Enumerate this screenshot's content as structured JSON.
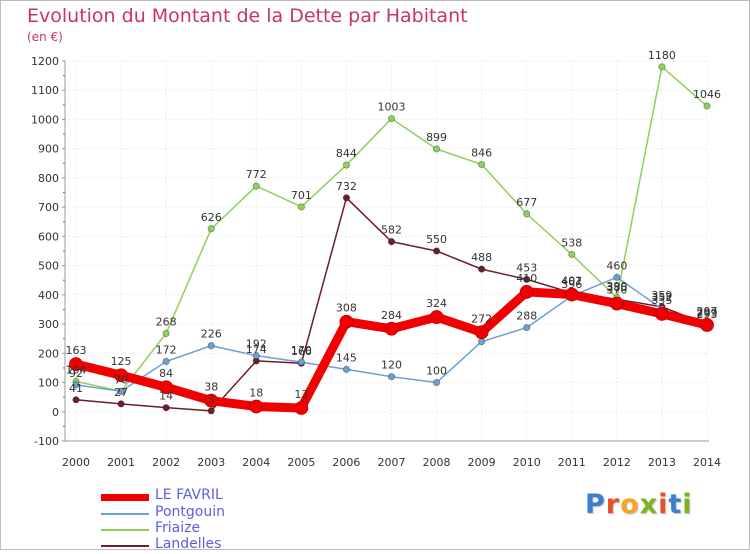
{
  "header": {
    "title": "Evolution du Montant de la Dette par Habitant",
    "unit": "(en €)"
  },
  "logo": {
    "text": "Proxiti",
    "letter_colors": [
      "#3b7fd0",
      "#e8502a",
      "#f5a623",
      "#7ab51d",
      "#e8502a",
      "#3b7fd0",
      "#7ab51d"
    ]
  },
  "chart_data": {
    "type": "line",
    "title": "Evolution du Montant de la Dette par Habitant",
    "ylabel": "(en €)",
    "xlabel": "",
    "x": [
      "2000",
      "2001",
      "2002",
      "2003",
      "2004",
      "2005",
      "2006",
      "2007",
      "2008",
      "2009",
      "2010",
      "2011",
      "2012",
      "2013",
      "2014"
    ],
    "ylim": [
      -100,
      1200
    ],
    "yticks": [
      -100,
      0,
      100,
      200,
      300,
      400,
      500,
      600,
      700,
      800,
      900,
      1000,
      1100,
      1200
    ],
    "grid": true,
    "legend": "bottom-left",
    "series": [
      {
        "name": "Landelles",
        "color": "#6b1f2a",
        "values": [
          41,
          27,
          14,
          3,
          174,
          166,
          732,
          582,
          550,
          488,
          453,
          407,
          385,
          359,
          299
        ],
        "labels": [
          "41",
          "27",
          "14",
          "3",
          "174",
          "166",
          "732",
          "582",
          "550",
          "488",
          "453",
          "407",
          "385",
          "359",
          "299"
        ]
      },
      {
        "name": "Friaize",
        "color": "#8fd05a",
        "values": [
          104,
          70,
          268,
          626,
          772,
          701,
          844,
          1003,
          899,
          846,
          677,
          538,
          390,
          1180,
          1046
        ],
        "labels": [
          "104",
          "70",
          "268",
          "626",
          "772",
          "701",
          "844",
          "1003",
          "899",
          "846",
          "677",
          "538",
          "390",
          "1180",
          "1046"
        ]
      },
      {
        "name": "Pontgouin",
        "color": "#6d9fd3",
        "values": [
          92,
          70,
          172,
          226,
          192,
          170,
          145,
          120,
          100,
          240,
          288,
          396,
          460,
          352,
          293
        ],
        "labels": [
          "92",
          "",
          "172",
          "226",
          "192",
          "170",
          "145",
          "120",
          "100",
          "",
          "288",
          "396",
          "460",
          "352",
          "293"
        ]
      },
      {
        "name": "LE FAVRIL",
        "color": "#f00000",
        "values": [
          163,
          125,
          84,
          38,
          18,
          13,
          308,
          284,
          324,
          272,
          410,
          401,
          370,
          335,
          297
        ],
        "labels": [
          "163",
          "125",
          "84",
          "38",
          "18",
          "13",
          "308",
          "284",
          "324",
          "272",
          "410",
          "401",
          "370",
          "335",
          "297"
        ]
      }
    ]
  }
}
